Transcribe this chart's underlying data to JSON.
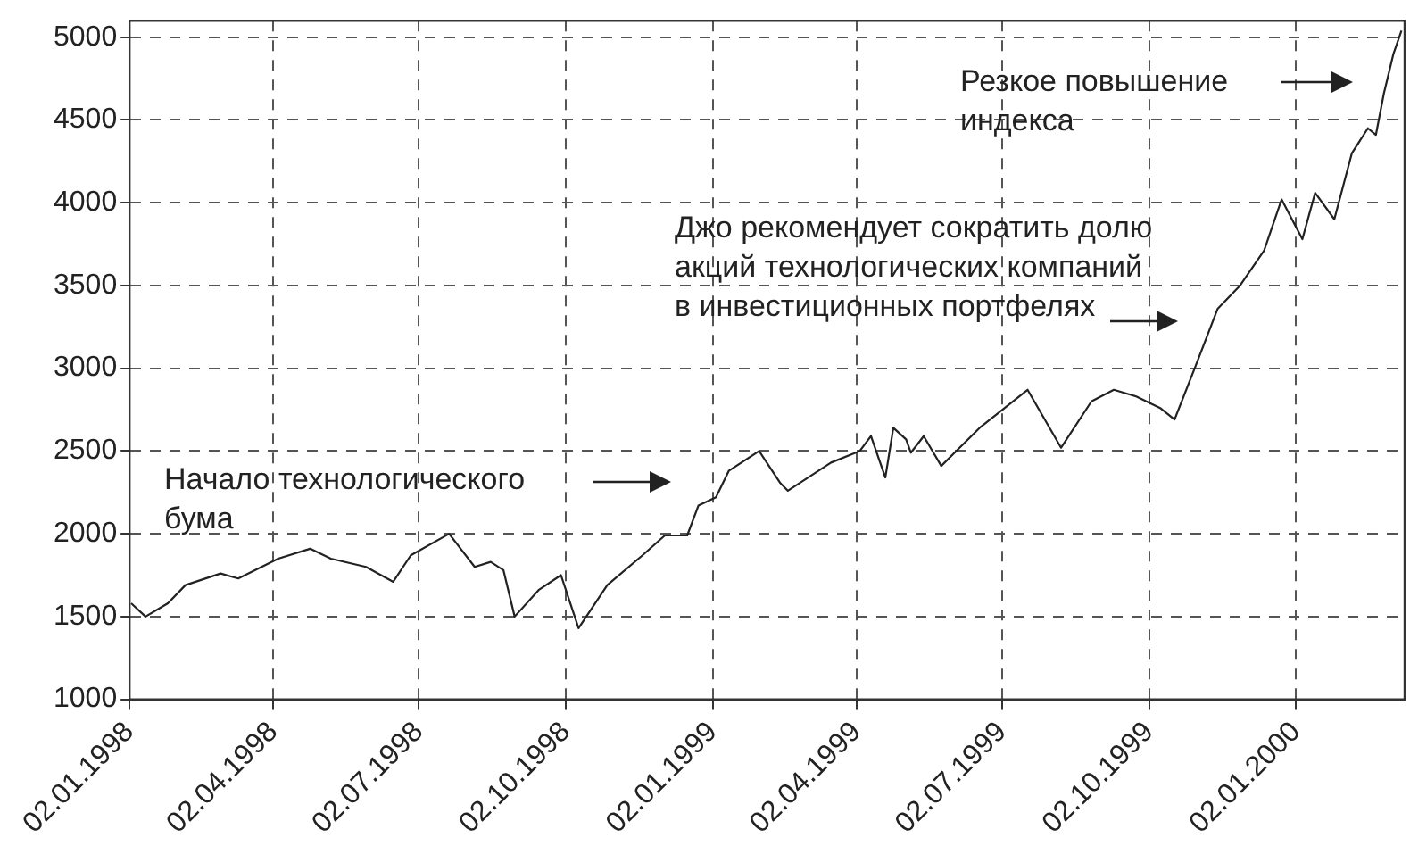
{
  "chart_data": {
    "type": "line",
    "x": [
      "1998-01-03",
      "1998-01-12",
      "1998-01-26",
      "1998-02-06",
      "1998-02-28",
      "1998-03-11",
      "1998-04-05",
      "1998-04-25",
      "1998-05-08",
      "1998-05-30",
      "1998-06-16",
      "1998-06-27",
      "1998-07-21",
      "1998-08-06",
      "1998-08-16",
      "1998-08-24",
      "1998-08-31",
      "1998-09-15",
      "1998-09-29",
      "1998-10-10",
      "1998-10-28",
      "1998-11-19",
      "1998-12-03",
      "1998-12-17",
      "1998-12-24",
      "1999-01-04",
      "1999-01-12",
      "1999-01-31",
      "1999-02-13",
      "1999-02-18",
      "1999-03-17",
      "1999-04-04",
      "1999-04-11",
      "1999-04-20",
      "1999-04-25",
      "1999-05-03",
      "1999-05-06",
      "1999-05-14",
      "1999-05-25",
      "1999-06-18",
      "1999-07-18",
      "1999-08-08",
      "1999-08-27",
      "1999-09-10",
      "1999-09-24",
      "1999-10-09",
      "1999-10-18",
      "1999-10-31",
      "1999-11-14",
      "1999-11-28",
      "1999-12-13",
      "1999-12-24",
      "2000-01-06",
      "2000-01-14",
      "2000-01-26",
      "2000-02-06",
      "2000-02-16",
      "2000-02-21",
      "2000-02-26",
      "2000-03-03",
      "2000-03-08"
    ],
    "series": [
      {
        "color": "#222222",
        "values": [
          1580,
          1500,
          1580,
          1690,
          1760,
          1730,
          1850,
          1910,
          1850,
          1800,
          1710,
          1870,
          2000,
          1800,
          1830,
          1780,
          1500,
          1660,
          1750,
          1430,
          1690,
          1870,
          1990,
          1990,
          2170,
          2220,
          2380,
          2500,
          2310,
          2260,
          2430,
          2500,
          2590,
          2340,
          2640,
          2570,
          2490,
          2590,
          2410,
          2640,
          2870,
          2520,
          2800,
          2870,
          2830,
          2760,
          2690,
          3010,
          3360,
          3500,
          3710,
          4020,
          3780,
          4060,
          3900,
          4300,
          4450,
          4410,
          4660,
          4900,
          5040
        ]
      }
    ],
    "xlim": [
      "1998-01-02",
      "2000-03-10"
    ],
    "xticks": [
      {
        "value": "1998-01-02",
        "label": "02.01.1998"
      },
      {
        "value": "1998-04-02",
        "label": "02.04.1998"
      },
      {
        "value": "1998-07-02",
        "label": "02.07.1998"
      },
      {
        "value": "1998-10-02",
        "label": "02.10.1998"
      },
      {
        "value": "1999-01-02",
        "label": "02.01.1999"
      },
      {
        "value": "1999-04-02",
        "label": "02.04.1999"
      },
      {
        "value": "1999-07-02",
        "label": "02.07.1999"
      },
      {
        "value": "1999-10-02",
        "label": "02.10.1999"
      },
      {
        "value": "2000-01-02",
        "label": "02.01.2000"
      }
    ],
    "ylim": [
      1000,
      5100
    ],
    "yticks": [
      1000,
      1500,
      2000,
      2500,
      3000,
      3500,
      4000,
      4500,
      5000
    ],
    "grid": true,
    "legend": false,
    "marker": "none",
    "line_style": "solid",
    "annotations": [
      "Начало технологического\nбума",
      "Джо рекомендует сократить долю\nакций технологических компаний\nв инвестиционных портфелях",
      "Резкое повышение\nиндекса"
    ]
  }
}
